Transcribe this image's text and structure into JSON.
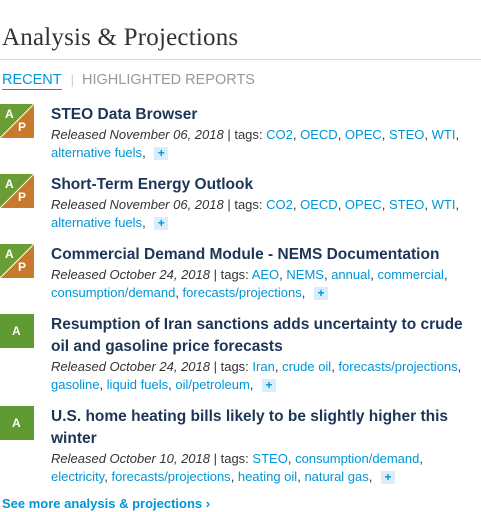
{
  "header": {
    "title": "Analysis & Projections"
  },
  "tabs": [
    {
      "label": "RECENT"
    },
    {
      "label": "HIGHLIGHTED REPORTS"
    }
  ],
  "tab_separator": "|",
  "tags_label": "tags:",
  "plus_label": "+",
  "items": [
    {
      "badge": "AP",
      "badge_a": "A",
      "badge_p": "P",
      "title": "STEO Data Browser",
      "released": "Released November 06, 2018",
      "tags": [
        "CO2",
        "OECD",
        "OPEC",
        "STEO",
        "WTI",
        "alternative fuels"
      ]
    },
    {
      "badge": "AP",
      "badge_a": "A",
      "badge_p": "P",
      "title": "Short-Term Energy Outlook",
      "released": "Released November 06, 2018",
      "tags": [
        "CO2",
        "OECD",
        "OPEC",
        "STEO",
        "WTI",
        "alternative fuels"
      ]
    },
    {
      "badge": "AP",
      "badge_a": "A",
      "badge_p": "P",
      "title": "Commercial Demand Module - NEMS Documentation",
      "released": "Released October 24, 2018",
      "tags": [
        "AEO",
        "NEMS",
        "annual",
        "commercial",
        "consumption/demand",
        "forecasts/projections"
      ]
    },
    {
      "badge": "A",
      "badge_a": "A",
      "title": "Resumption of Iran sanctions adds uncertainty to crude oil and gasoline price forecasts",
      "released": "Released October 24, 2018",
      "tags": [
        "Iran",
        "crude oil",
        "forecasts/projections",
        "gasoline",
        "liquid fuels",
        "oil/petroleum"
      ]
    },
    {
      "badge": "A",
      "badge_a": "A",
      "title": "U.S. home heating bills likely to be slightly higher this winter",
      "released": "Released October 10, 2018",
      "tags": [
        "STEO",
        "consumption/demand",
        "electricity",
        "forecasts/projections",
        "heating oil",
        "natural gas"
      ]
    }
  ],
  "footer": {
    "see_more": "See more analysis & projections ›"
  },
  "colors": {
    "accent": "#0096d6",
    "title": "#1d3557",
    "badge_green": "#6a9e34",
    "badge_orange": "#c87a2c"
  }
}
